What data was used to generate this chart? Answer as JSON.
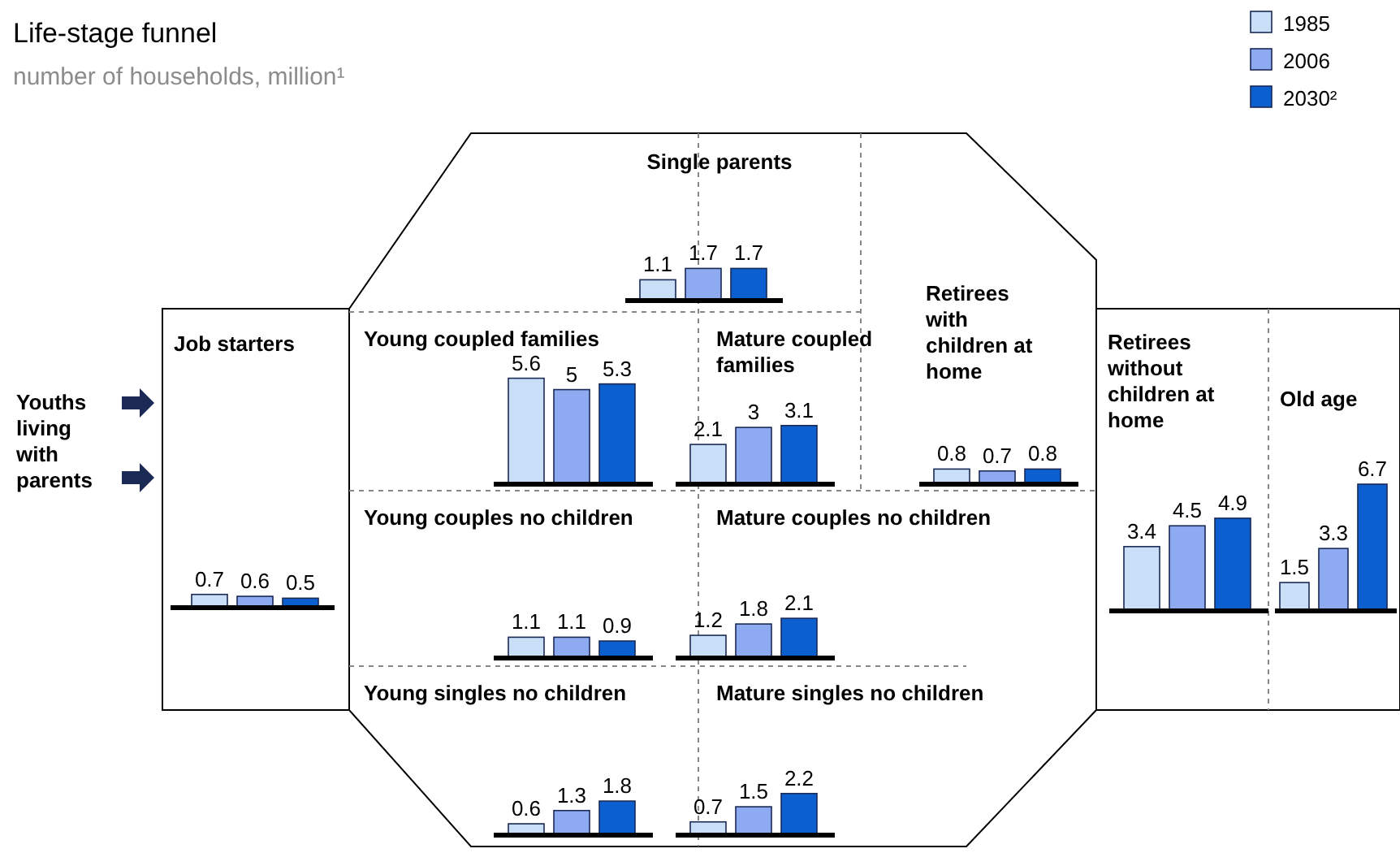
{
  "chart_data": [
    {
      "type": "other",
      "title": "Life-stage funnel",
      "subtitle": "number of households, million¹",
      "annotations": [
        "Youths living with parents"
      ]
    },
    {
      "type": "bar",
      "title": "Job starters",
      "categories": [
        null
      ],
      "legend": "top right",
      "data_labels": true,
      "series": [
        {
          "name": "1985",
          "color": "#c9dff7",
          "values": [
            0.7
          ]
        },
        {
          "name": "2006",
          "color": "#8eaaf0",
          "values": [
            0.6
          ]
        },
        {
          "name": "2030²",
          "color": "#0b5fcf",
          "values": [
            0.5
          ]
        }
      ]
    },
    {
      "type": "bar",
      "title": "Single parents",
      "categories": [
        null
      ],
      "data_labels": true,
      "series": [
        {
          "color": "#c9dff7",
          "values": [
            1.1
          ]
        },
        {
          "color": "#8eaaf0",
          "values": [
            1.7
          ]
        },
        {
          "color": "#0b5fcf",
          "values": [
            1.7
          ]
        }
      ]
    },
    {
      "type": "bar",
      "title": "Young coupled families",
      "categories": [
        null
      ],
      "data_labels": true,
      "series": [
        {
          "color": "#c9dff7",
          "values": [
            5.6
          ]
        },
        {
          "color": "#8eaaf0",
          "values": [
            5.0
          ]
        },
        {
          "color": "#0b5fcf",
          "values": [
            5.3
          ]
        }
      ]
    },
    {
      "type": "bar",
      "title": "Mature coupled families",
      "categories": [
        null
      ],
      "data_labels": true,
      "series": [
        {
          "color": "#c9dff7",
          "values": [
            2.1
          ]
        },
        {
          "color": "#8eaaf0",
          "values": [
            3.0
          ]
        },
        {
          "color": "#0b5fcf",
          "values": [
            3.1
          ]
        }
      ]
    },
    {
      "type": "bar",
      "title": "Retirees with children at home",
      "categories": [
        null
      ],
      "data_labels": true,
      "series": [
        {
          "color": "#c9dff7",
          "values": [
            0.8
          ]
        },
        {
          "color": "#8eaaf0",
          "values": [
            0.7
          ]
        },
        {
          "color": "#0b5fcf",
          "values": [
            0.8
          ]
        }
      ]
    },
    {
      "type": "bar",
      "title": "Retirees without children at home",
      "categories": [
        null
      ],
      "data_labels": true,
      "series": [
        {
          "color": "#c9dff7",
          "values": [
            3.4
          ]
        },
        {
          "color": "#8eaaf0",
          "values": [
            4.5
          ]
        },
        {
          "color": "#0b5fcf",
          "values": [
            4.9
          ]
        }
      ]
    },
    {
      "type": "bar",
      "title": "Old age",
      "categories": [
        null
      ],
      "data_labels": true,
      "series": [
        {
          "color": "#c9dff7",
          "values": [
            1.5
          ]
        },
        {
          "color": "#8eaaf0",
          "values": [
            3.3
          ]
        },
        {
          "color": "#0b5fcf",
          "values": [
            6.7
          ]
        }
      ]
    },
    {
      "type": "bar",
      "title": "Young couples no children",
      "categories": [
        null
      ],
      "data_labels": true,
      "series": [
        {
          "color": "#c9dff7",
          "values": [
            1.1
          ]
        },
        {
          "color": "#8eaaf0",
          "values": [
            1.1
          ]
        },
        {
          "color": "#0b5fcf",
          "values": [
            0.9
          ]
        }
      ]
    },
    {
      "type": "bar",
      "title": "Mature couples no children",
      "categories": [
        null
      ],
      "data_labels": true,
      "series": [
        {
          "color": "#c9dff7",
          "values": [
            1.2
          ]
        },
        {
          "color": "#8eaaf0",
          "values": [
            1.8
          ]
        },
        {
          "color": "#0b5fcf",
          "values": [
            2.1
          ]
        }
      ]
    },
    {
      "type": "bar",
      "title": "Young singles no children",
      "categories": [
        null
      ],
      "data_labels": true,
      "series": [
        {
          "color": "#c9dff7",
          "values": [
            0.6
          ]
        },
        {
          "color": "#8eaaf0",
          "values": [
            1.3
          ]
        },
        {
          "color": "#0b5fcf",
          "values": [
            1.8
          ]
        }
      ]
    },
    {
      "type": "bar",
      "title": "Mature singles no children",
      "categories": [
        null
      ],
      "data_labels": true,
      "series": [
        {
          "color": "#c9dff7",
          "values": [
            0.7
          ]
        },
        {
          "color": "#8eaaf0",
          "values": [
            1.5
          ]
        },
        {
          "color": "#0b5fcf",
          "values": [
            2.2
          ]
        }
      ]
    }
  ]
}
